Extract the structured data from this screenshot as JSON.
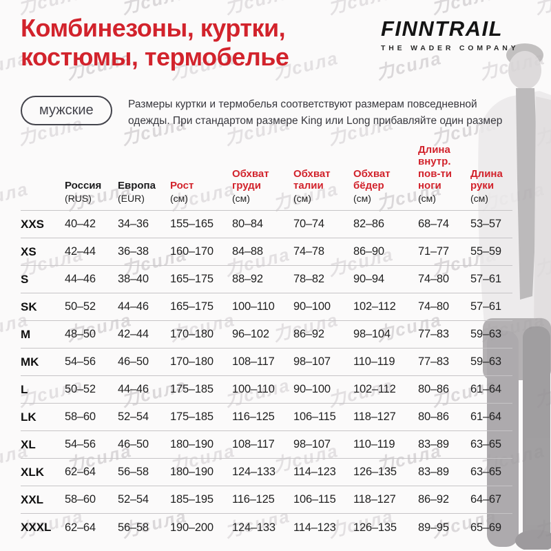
{
  "watermark": {
    "text": "力сила"
  },
  "header": {
    "title_line1": "Комбинезоны, куртки,",
    "title_line2": "костюмы, термобелье",
    "logo": {
      "name": "FINNTRAIL",
      "tagline": "THE WADER COMPANY"
    }
  },
  "intro": {
    "badge": "мужские",
    "description_lines": [
      "Размеры куртки и термобелья соответствуют размерам повседневной",
      "одежды. При стандартом размере King или Long прибавляйте один размер"
    ]
  },
  "colors": {
    "accent_red": "#d2232c",
    "text_dark": "#1c1c1e",
    "gridline": "#c6c4c6"
  },
  "size_table": {
    "columns": [
      {
        "label": "Россия",
        "sub": "(RUS)",
        "accent": false
      },
      {
        "label": "Европа",
        "sub": "(EUR)",
        "accent": false
      },
      {
        "label": "Рост",
        "sub": "(см)",
        "accent": true
      },
      {
        "label": "Обхват груди",
        "sub": "(см)",
        "accent": true
      },
      {
        "label": "Обхват талии",
        "sub": "(см)",
        "accent": true
      },
      {
        "label": "Обхват бёдер",
        "sub": "(см)",
        "accent": true
      },
      {
        "label": "Длина внутр. пов-ти ноги",
        "sub": "(см)",
        "accent": true
      },
      {
        "label": "Длина руки",
        "sub": "(см)",
        "accent": true
      }
    ],
    "rows": [
      {
        "size": "XXS",
        "values": [
          "40–42",
          "34–36",
          "155–165",
          "80–84",
          "70–74",
          "82–86",
          "68–74",
          "53–57"
        ]
      },
      {
        "size": "XS",
        "values": [
          "42–44",
          "36–38",
          "160–170",
          "84–88",
          "74–78",
          "86–90",
          "71–77",
          "55–59"
        ]
      },
      {
        "size": "S",
        "values": [
          "44–46",
          "38–40",
          "165–175",
          "88–92",
          "78–82",
          "90–94",
          "74–80",
          "57–61"
        ]
      },
      {
        "size": "SK",
        "values": [
          "50–52",
          "44–46",
          "165–175",
          "100–110",
          "90–100",
          "102–112",
          "74–80",
          "57–61"
        ]
      },
      {
        "size": "M",
        "values": [
          "48–50",
          "42–44",
          "170–180",
          "96–102",
          "86–92",
          "98–104",
          "77–83",
          "59–63"
        ]
      },
      {
        "size": "MK",
        "values": [
          "54–56",
          "46–50",
          "170–180",
          "108–117",
          "98–107",
          "110–119",
          "77–83",
          "59–63"
        ]
      },
      {
        "size": "L",
        "values": [
          "50–52",
          "44–46",
          "175–185",
          "100–110",
          "90–100",
          "102–112",
          "80–86",
          "61–64"
        ]
      },
      {
        "size": "LK",
        "values": [
          "58–60",
          "52–54",
          "175–185",
          "116–125",
          "106–115",
          "118–127",
          "80–86",
          "61–64"
        ]
      },
      {
        "size": "XL",
        "values": [
          "54–56",
          "46–50",
          "180–190",
          "108–117",
          "98–107",
          "110–119",
          "83–89",
          "63–65"
        ]
      },
      {
        "size": "XLK",
        "values": [
          "62–64",
          "56–58",
          "180–190",
          "124–133",
          "114–123",
          "126–135",
          "83–89",
          "63–65"
        ]
      },
      {
        "size": "XXL",
        "values": [
          "58–60",
          "52–54",
          "185–195",
          "116–125",
          "106–115",
          "118–127",
          "86–92",
          "64–67"
        ]
      },
      {
        "size": "XXXL",
        "values": [
          "62–64",
          "56–58",
          "190–200",
          "124–133",
          "114–123",
          "126–135",
          "89–95",
          "65–69"
        ]
      }
    ]
  }
}
